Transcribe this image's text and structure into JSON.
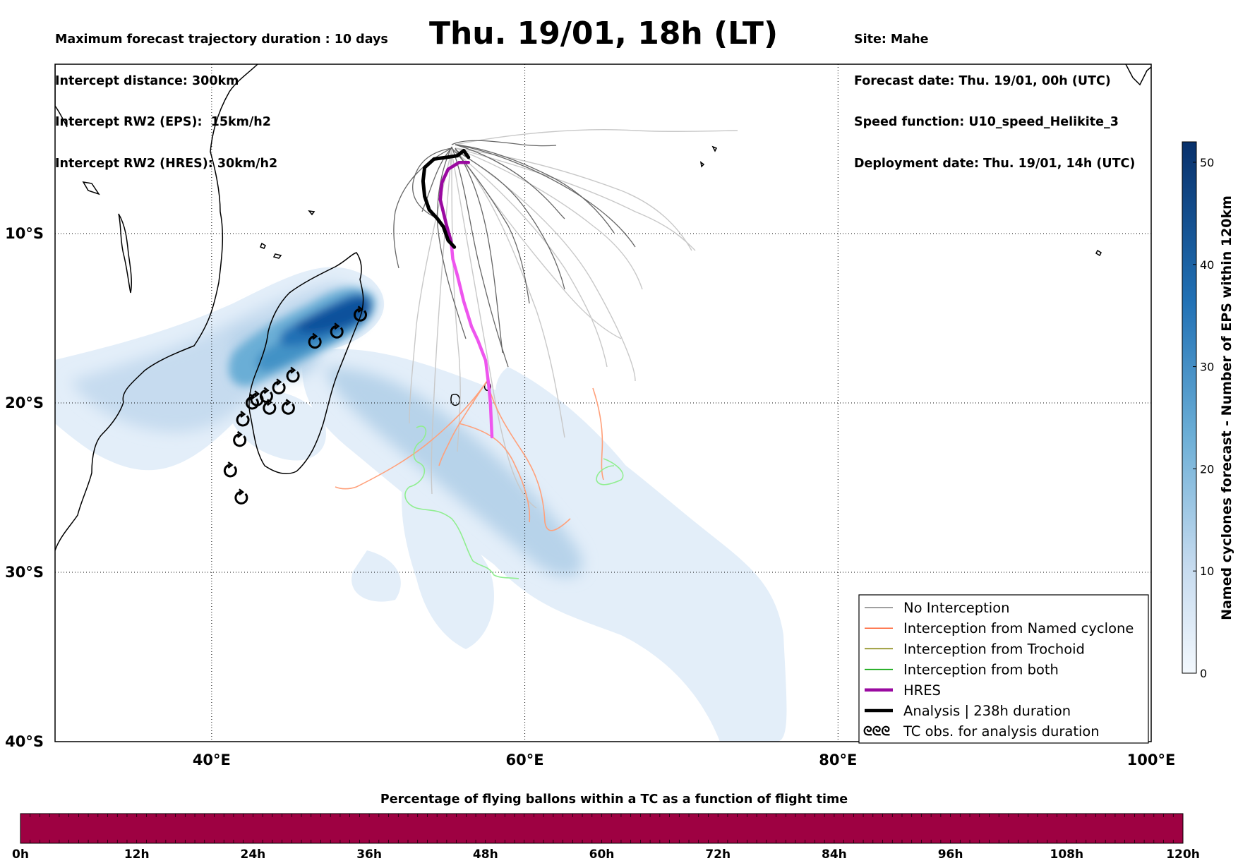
{
  "header": {
    "left_lines": [
      "Maximum forecast trajectory duration : 10 days",
      "Intercept distance: 300km",
      "Intercept RW2 (EPS):  15km/h2",
      "Intercept RW2 (HRES): 30km/h2"
    ],
    "title": "Thu. 19/01, 18h (LT)",
    "right_lines": [
      "Site: Mahe",
      "Forecast date: Thu. 19/01, 00h (UTC)",
      "Speed function: U10_speed_Helikite_3",
      "Deployment date: Thu. 19/01, 14h (UTC)"
    ]
  },
  "map": {
    "lon_range": [
      30,
      100
    ],
    "lat_range": [
      -40,
      0
    ],
    "lat_labels": [
      {
        "lat": -10,
        "label": "10°S"
      },
      {
        "lat": -20,
        "label": "20°S"
      },
      {
        "lat": -30,
        "label": "30°S"
      },
      {
        "lat": -40,
        "label": "40°S"
      }
    ],
    "lon_labels": [
      {
        "lon": 40,
        "label": "40°E"
      },
      {
        "lon": 60,
        "label": "60°E"
      },
      {
        "lon": 80,
        "label": "80°E"
      },
      {
        "lon": 100,
        "label": "100°E"
      }
    ],
    "colors": {
      "no_interception": "#808080",
      "no_interception_light": "#c8c8c8",
      "named_cyclone": "#ff6030",
      "trochoid": "#808000",
      "both": "#00a000",
      "both_light": "#90ee90",
      "hres": "#9a0aa0",
      "hres_light": "#ee55ee",
      "analysis": "#000000",
      "density_light": "#deebf7",
      "density_dark": "#08306b"
    },
    "hres_track": [
      [
        57.9,
        -22.0
      ],
      [
        57.8,
        -20.0
      ],
      [
        57.7,
        -19.0
      ],
      [
        57.5,
        -17.5
      ],
      [
        57.0,
        -16.3
      ],
      [
        56.6,
        -15.5
      ],
      [
        56.1,
        -14.0
      ],
      [
        55.7,
        -12.5
      ],
      [
        55.4,
        -11.5
      ],
      [
        55.3,
        -10.5
      ],
      [
        55.0,
        -9.5
      ],
      [
        54.6,
        -8.0
      ],
      [
        54.7,
        -7.0
      ],
      [
        55.1,
        -6.2
      ],
      [
        55.8,
        -5.8
      ],
      [
        56.4,
        -5.8
      ]
    ],
    "analysis_track": [
      [
        55.5,
        -10.8
      ],
      [
        55.1,
        -10.4
      ],
      [
        54.8,
        -9.6
      ],
      [
        54.4,
        -9.1
      ],
      [
        53.9,
        -8.6
      ],
      [
        53.6,
        -7.8
      ],
      [
        53.5,
        -6.9
      ],
      [
        53.6,
        -6.1
      ],
      [
        54.2,
        -5.6
      ],
      [
        55.0,
        -5.5
      ],
      [
        55.7,
        -5.4
      ],
      [
        56.1,
        -5.1
      ],
      [
        56.4,
        -5.5
      ]
    ],
    "tc_obs": [
      [
        49.5,
        -14.8
      ],
      [
        48.0,
        -15.8
      ],
      [
        46.6,
        -16.4
      ],
      [
        45.2,
        -18.4
      ],
      [
        44.3,
        -19.1
      ],
      [
        43.5,
        -19.6
      ],
      [
        42.9,
        -19.8
      ],
      [
        42.6,
        -20.0
      ],
      [
        43.7,
        -20.3
      ],
      [
        44.9,
        -20.3
      ],
      [
        42.0,
        -21.0
      ],
      [
        41.8,
        -22.2
      ],
      [
        41.2,
        -24.0
      ],
      [
        41.9,
        -25.6
      ]
    ]
  },
  "colorbar_right": {
    "title": "Named cyclones forecast - Number of EPS within 120km",
    "ticks": [
      "0",
      "10",
      "20",
      "30",
      "40",
      "50"
    ],
    "max": 52
  },
  "legend": {
    "items": [
      {
        "label": "No Interception",
        "kind": "line",
        "color": "#808080"
      },
      {
        "label": "Interception from Named cyclone",
        "kind": "line",
        "color": "#ff6030"
      },
      {
        "label": "Interception from Trochoid",
        "kind": "line",
        "color": "#808000"
      },
      {
        "label": "Interception from both",
        "kind": "line",
        "color": "#00a000"
      },
      {
        "label": "HRES",
        "kind": "thick",
        "color": "#9a0aa0"
      },
      {
        "label": "Analysis | 238h duration",
        "kind": "thick",
        "color": "#000000"
      },
      {
        "label": "TC obs. for analysis duration",
        "kind": "symbol",
        "symbol": "ᘓᘓᘓ"
      }
    ]
  },
  "time_bar": {
    "title": "Percentage of flying ballons within a TC as a function of flight time",
    "ticks": [
      "0h",
      "12h",
      "24h",
      "36h",
      "48h",
      "60h",
      "72h",
      "84h",
      "96h",
      "108h",
      "120h"
    ],
    "fill_color": "#9e0142"
  }
}
